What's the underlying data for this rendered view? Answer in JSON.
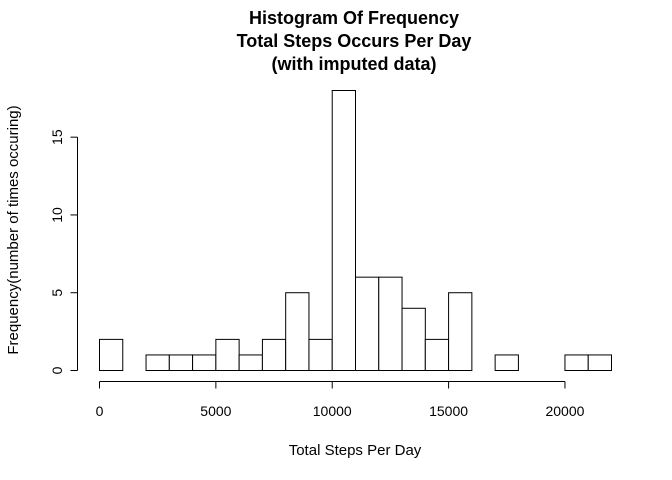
{
  "chart_data": {
    "type": "bar",
    "title_lines": [
      "Histogram Of Frequency",
      "Total Steps Occurs Per Day",
      "(with imputed data)"
    ],
    "xlabel": "Total Steps Per Day",
    "ylabel": "Frequency(number of times occuring)",
    "bin_width": 1000,
    "bin_start": 0,
    "values": [
      2,
      0,
      1,
      1,
      1,
      2,
      1,
      2,
      5,
      2,
      18,
      6,
      6,
      4,
      2,
      5,
      0,
      1,
      0,
      0,
      1,
      1
    ],
    "xlim": [
      0,
      22000
    ],
    "ylim": [
      0,
      18
    ],
    "x_ticks": [
      0,
      5000,
      10000,
      15000,
      20000
    ],
    "x_tick_labels": [
      "0",
      "5000",
      "10000",
      "15000",
      "20000"
    ],
    "y_ticks": [
      0,
      5,
      10,
      15
    ],
    "y_tick_labels": [
      "0",
      "5",
      "10",
      "15"
    ],
    "bar_fill": "#ffffff",
    "bar_stroke": "#000000",
    "grid": false
  }
}
